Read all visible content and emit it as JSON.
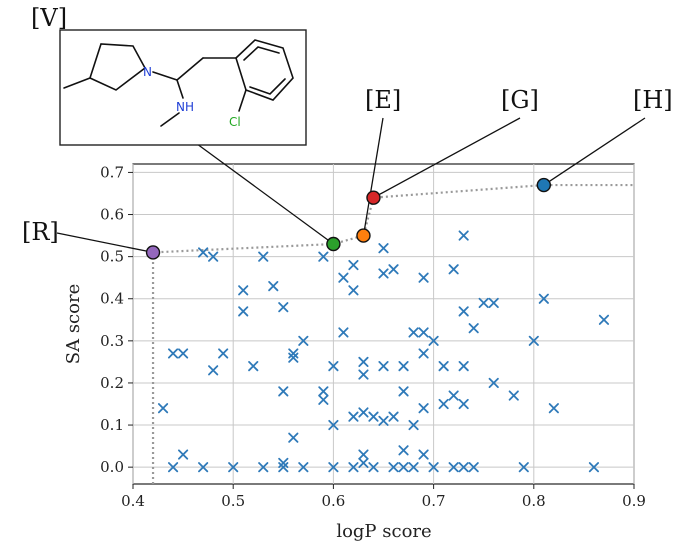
{
  "chart_data": {
    "type": "scatter",
    "xlabel": "logP score",
    "ylabel": "SA score",
    "xlim": [
      0.4,
      0.9
    ],
    "ylim": [
      -0.04,
      0.72
    ],
    "xticks": [
      0.4,
      0.5,
      0.6,
      0.7,
      0.8,
      0.9
    ],
    "yticks": [
      0.0,
      0.1,
      0.2,
      0.3,
      0.4,
      0.5,
      0.6,
      0.7
    ],
    "xtick_labels": [
      "0.4",
      "0.5",
      "0.6",
      "0.7",
      "0.8",
      "0.9"
    ],
    "ytick_labels": [
      "0.0",
      "0.1",
      "0.2",
      "0.3",
      "0.4",
      "0.5",
      "0.6",
      "0.7"
    ],
    "grid": true,
    "marker_color": "#2f7ab9",
    "scatter_x": [
      [
        0.43,
        0.14
      ],
      [
        0.44,
        0.27
      ],
      [
        0.44,
        0.0
      ],
      [
        0.45,
        0.27
      ],
      [
        0.45,
        0.03
      ],
      [
        0.47,
        0.51
      ],
      [
        0.48,
        0.5
      ],
      [
        0.48,
        0.23
      ],
      [
        0.47,
        0.0
      ],
      [
        0.49,
        0.27
      ],
      [
        0.5,
        0.0
      ],
      [
        0.51,
        0.42
      ],
      [
        0.51,
        0.37
      ],
      [
        0.52,
        0.24
      ],
      [
        0.53,
        0.5
      ],
      [
        0.53,
        0.0
      ],
      [
        0.54,
        0.43
      ],
      [
        0.55,
        0.38
      ],
      [
        0.55,
        0.18
      ],
      [
        0.55,
        0.01
      ],
      [
        0.55,
        0.0
      ],
      [
        0.56,
        0.27
      ],
      [
        0.56,
        0.26
      ],
      [
        0.56,
        0.07
      ],
      [
        0.57,
        0.3
      ],
      [
        0.57,
        0.0
      ],
      [
        0.59,
        0.5
      ],
      [
        0.59,
        0.18
      ],
      [
        0.59,
        0.16
      ],
      [
        0.6,
        0.24
      ],
      [
        0.6,
        0.1
      ],
      [
        0.6,
        0.0
      ],
      [
        0.61,
        0.45
      ],
      [
        0.61,
        0.32
      ],
      [
        0.62,
        0.48
      ],
      [
        0.62,
        0.42
      ],
      [
        0.62,
        0.12
      ],
      [
        0.62,
        0.0
      ],
      [
        0.63,
        0.25
      ],
      [
        0.63,
        0.22
      ],
      [
        0.63,
        0.13
      ],
      [
        0.63,
        0.03
      ],
      [
        0.63,
        0.01
      ],
      [
        0.64,
        0.12
      ],
      [
        0.64,
        0.0
      ],
      [
        0.65,
        0.52
      ],
      [
        0.65,
        0.46
      ],
      [
        0.65,
        0.24
      ],
      [
        0.65,
        0.11
      ],
      [
        0.66,
        0.47
      ],
      [
        0.66,
        0.12
      ],
      [
        0.66,
        0.0
      ],
      [
        0.67,
        0.24
      ],
      [
        0.67,
        0.18
      ],
      [
        0.67,
        0.04
      ],
      [
        0.67,
        0.0
      ],
      [
        0.68,
        0.32
      ],
      [
        0.68,
        0.1
      ],
      [
        0.68,
        0.0
      ],
      [
        0.69,
        0.45
      ],
      [
        0.69,
        0.32
      ],
      [
        0.69,
        0.27
      ],
      [
        0.69,
        0.14
      ],
      [
        0.69,
        0.03
      ],
      [
        0.7,
        0.3
      ],
      [
        0.7,
        0.0
      ],
      [
        0.71,
        0.24
      ],
      [
        0.71,
        0.15
      ],
      [
        0.72,
        0.47
      ],
      [
        0.72,
        0.17
      ],
      [
        0.72,
        0.0
      ],
      [
        0.73,
        0.55
      ],
      [
        0.73,
        0.37
      ],
      [
        0.73,
        0.24
      ],
      [
        0.73,
        0.15
      ],
      [
        0.73,
        0.0
      ],
      [
        0.74,
        0.33
      ],
      [
        0.74,
        0.0
      ],
      [
        0.75,
        0.39
      ],
      [
        0.76,
        0.39
      ],
      [
        0.76,
        0.2
      ],
      [
        0.78,
        0.17
      ],
      [
        0.79,
        0.0
      ],
      [
        0.8,
        0.3
      ],
      [
        0.81,
        0.4
      ],
      [
        0.82,
        0.14
      ],
      [
        0.86,
        0.0
      ],
      [
        0.87,
        0.35
      ]
    ],
    "pareto_front": {
      "color": "#999999",
      "points": [
        [
          0.42,
          -0.04
        ],
        [
          0.42,
          0.51
        ],
        [
          0.6,
          0.53
        ],
        [
          0.63,
          0.55
        ],
        [
          0.64,
          0.64
        ],
        [
          0.81,
          0.67
        ],
        [
          0.9,
          0.67
        ]
      ]
    },
    "highlighted": [
      {
        "label": "[R]",
        "x": 0.42,
        "y": 0.51,
        "color": "#9467bd"
      },
      {
        "label": "[V]",
        "x": 0.6,
        "y": 0.53,
        "color": "#2ca02c"
      },
      {
        "label": "[E]",
        "x": 0.63,
        "y": 0.55,
        "color": "#ff7f0e"
      },
      {
        "label": "[G]",
        "x": 0.64,
        "y": 0.64,
        "color": "#d62728"
      },
      {
        "label": "[H]",
        "x": 0.81,
        "y": 0.67,
        "color": "#1f77b4"
      }
    ]
  },
  "molecule": {
    "label": "[V]",
    "atom_n": "N",
    "atom_nh": "NH",
    "atom_cl": "Cl",
    "n_color": "#1f3fd6",
    "cl_color": "#22a822"
  }
}
